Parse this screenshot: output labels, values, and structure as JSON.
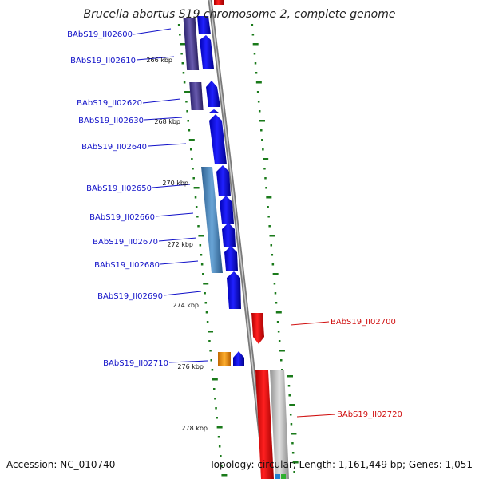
{
  "title": "Brucella abortus S19 chromosome 2, complete genome",
  "footer": {
    "accession": "Accession: NC_010740",
    "topology": "Topology: circular; Length: 1,161,449 bp; Genes: 1,051"
  },
  "kbp_ticks": [
    "266 kbp",
    "268 kbp",
    "270 kbp",
    "272 kbp",
    "274 kbp",
    "276 kbp",
    "278 kbp"
  ],
  "genes_left": [
    "BAbS19_II02600",
    "BAbS19_II02610",
    "BAbS19_II02620",
    "BAbS19_II02630",
    "BAbS19_II02640",
    "BAbS19_II02650",
    "BAbS19_II02660",
    "BAbS19_II02670",
    "BAbS19_II02680",
    "BAbS19_II02690",
    "BAbS19_II02710"
  ],
  "genes_right": [
    "BAbS19_II02700",
    "BAbS19_II02720"
  ],
  "colors": {
    "forward_cds": "#0a0ad8",
    "reverse_cds": "#e01010",
    "cog_purple": "#4a3c8c",
    "cog_steelblue": "#4a86b8",
    "cog_orange": "#f0900a",
    "cog_gray": "#b0b0b0",
    "backbone": "#808080",
    "gc_marks": "#1a7a1a"
  }
}
